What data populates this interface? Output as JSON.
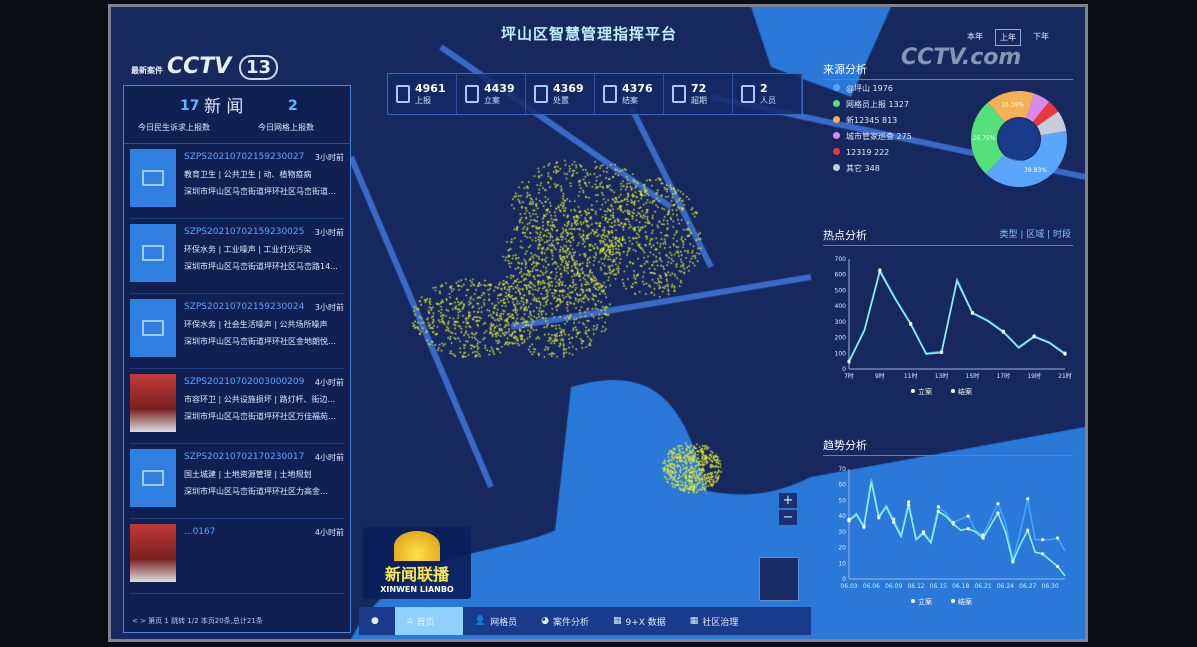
{
  "header": {
    "title": "坪山区智慧管理指挥平台",
    "years": [
      "本年",
      "上年",
      "下年"
    ],
    "active_year": "上年"
  },
  "stats": [
    {
      "value": "4961",
      "label": "上报"
    },
    {
      "value": "4439",
      "label": "立案"
    },
    {
      "value": "4369",
      "label": "处置"
    },
    {
      "value": "4376",
      "label": "结案"
    },
    {
      "value": "72",
      "label": "超期"
    },
    {
      "value": "2",
      "label": "人员"
    }
  ],
  "news": {
    "title": "新 闻",
    "count_left": "17",
    "label_left": "今日民生诉求上报数",
    "count_right": "2",
    "label_right": "今日网格上报数",
    "items": [
      {
        "id": "SZPS20210702159230027",
        "time": "3小时前",
        "category": "教育卫生 | 公共卫生 | 动、植物疫病",
        "address": "深圳市坪山区马峦街道坪环社区马峦街道..."
      },
      {
        "id": "SZPS20210702159230025",
        "time": "3小时前",
        "category": "环保水务 | 工业噪声 | 工业灯光污染",
        "address": "深圳市坪山区马峦街道坪环社区马峦路14..."
      },
      {
        "id": "SZPS20210702159230024",
        "time": "3小时前",
        "category": "环保水务 | 社会生活噪声 | 公共场所噪声",
        "address": "深圳市坪山区马峦街道坪环社区金地朗悦..."
      },
      {
        "id": "SZPS20210702003000209",
        "time": "4小时前",
        "category": "市容环卫 | 公共设施损坏 | 路灯杆、街边...",
        "address": "深圳市坪山区马峦街道坪环社区万佳福苑..."
      },
      {
        "id": "SZPS20210702170230017",
        "time": "4小时前",
        "category": "国土城建 | 土地资源管理 | 土地规划",
        "address": "深圳市坪山区马峦街道坪环社区力高金..."
      },
      {
        "id": "...0167",
        "time": "4小时前",
        "category": "",
        "address": ""
      }
    ],
    "pager": "< > 第页 1 跳转 1/2 本页20条,总计21条"
  },
  "overlay": {
    "logo_prefix": "最新案件",
    "logo": "CCTV",
    "channel": "13",
    "program_cn": "新闻联播",
    "program_en": "XINWEN LIANBO",
    "watermark": "CCTV.com"
  },
  "source": {
    "title": "来源分析",
    "items": [
      {
        "name": "@坪山",
        "value": 1976,
        "color": "#5aa6ff"
      },
      {
        "name": "网格员上报",
        "value": 1327,
        "color": "#55e07a"
      },
      {
        "name": "新12345",
        "value": 813,
        "color": "#f5b055"
      },
      {
        "name": "城市管家巡查",
        "value": 275,
        "color": "#d889ee"
      },
      {
        "name": "12319",
        "value": 222,
        "color": "#e83a3a"
      },
      {
        "name": "其它",
        "value": 348,
        "color": "#c8ccd8"
      }
    ],
    "pct_labels": [
      "39.83%",
      "26.75%",
      "16.39%"
    ]
  },
  "hotspot": {
    "title": "热点分析",
    "tabs": "类型 | 区域 | 时段"
  },
  "trend": {
    "title": "趋势分析"
  },
  "nav": [
    {
      "label": "",
      "icon": "dot-icon"
    },
    {
      "label": "首页",
      "icon": "home-icon"
    },
    {
      "label": "网格员",
      "icon": "user-icon"
    },
    {
      "label": "案件分析",
      "icon": "chart-icon"
    },
    {
      "label": "9+X 数据",
      "icon": "grid-icon"
    },
    {
      "label": "社区治理",
      "icon": "grid-icon"
    }
  ],
  "map": {
    "zoom_in": "+",
    "zoom_out": "−"
  },
  "chart_data": [
    {
      "type": "line",
      "title": "热点分析",
      "x": [
        "7时",
        "8时",
        "9时",
        "10时",
        "11时",
        "12时",
        "13时",
        "14时",
        "15时",
        "16时",
        "17时",
        "18时",
        "19时",
        "20时",
        "21时"
      ],
      "xticks": [
        "7时",
        "9时",
        "11时",
        "13时",
        "15时",
        "17时",
        "19时",
        "21时"
      ],
      "ylim": [
        0,
        700
      ],
      "yticks": [
        0,
        100,
        200,
        300,
        400,
        500,
        600,
        700
      ],
      "legend": "bottom",
      "series": [
        {
          "name": "立案",
          "color": "#3ea8ff",
          "values": [
            50,
            250,
            630,
            450,
            290,
            100,
            110,
            570,
            360,
            310,
            240,
            140,
            210,
            170,
            100
          ]
        },
        {
          "name": "结案",
          "color": "#8ff0e8",
          "values": [
            45,
            245,
            620,
            445,
            285,
            95,
            105,
            560,
            355,
            305,
            235,
            135,
            205,
            165,
            95
          ]
        }
      ]
    },
    {
      "type": "line",
      "title": "趋势分析",
      "x": [
        "06.03",
        "06.04",
        "06.05",
        "06.06",
        "06.07",
        "06.08",
        "06.09",
        "06.10",
        "06.11",
        "06.12",
        "06.13",
        "06.14",
        "06.15",
        "06.16",
        "06.17",
        "06.18",
        "06.19",
        "06.20",
        "06.21",
        "06.22",
        "06.23",
        "06.24",
        "06.25",
        "06.26",
        "06.27",
        "06.28",
        "06.29",
        "06.30",
        "07.01",
        "07.02"
      ],
      "xticks": [
        "06.03",
        "06.06",
        "06.09",
        "06.12",
        "06.15",
        "06.18",
        "06.21",
        "06.24",
        "06.27",
        "06.30"
      ],
      "ylim": [
        0,
        70
      ],
      "yticks": [
        0,
        10,
        20,
        30,
        40,
        50,
        60,
        70
      ],
      "legend": "bottom",
      "series": [
        {
          "name": "立案",
          "color": "#3ea8ff",
          "values": [
            38,
            42,
            34,
            64,
            40,
            47,
            38,
            28,
            49,
            26,
            30,
            24,
            46,
            42,
            36,
            38,
            40,
            31,
            28,
            38,
            48,
            36,
            12,
            30,
            51,
            25,
            25,
            25,
            26,
            18
          ]
        },
        {
          "name": "结案",
          "color": "#8ff0e8",
          "values": [
            37,
            41,
            33,
            62,
            39,
            46,
            36,
            27,
            47,
            25,
            29,
            23,
            43,
            40,
            35,
            31,
            32,
            30,
            26,
            34,
            42,
            30,
            11,
            22,
            31,
            17,
            16,
            12,
            8,
            2
          ]
        }
      ]
    }
  ]
}
